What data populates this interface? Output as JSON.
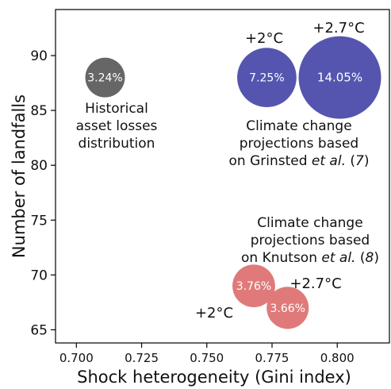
{
  "chart_data": {
    "type": "scatter",
    "xlabel": "Shock heterogeneity (Gini index)",
    "ylabel": "Number of landfalls",
    "xlim": [
      0.692,
      0.82
    ],
    "ylim": [
      63.8,
      94.2
    ],
    "xticks": [
      0.7,
      0.725,
      0.75,
      0.775,
      0.8
    ],
    "xtick_labels": [
      "0.700",
      "0.725",
      "0.750",
      "0.775",
      "0.800"
    ],
    "yticks": [
      65,
      70,
      75,
      80,
      85,
      90
    ],
    "ytick_labels": [
      "65",
      "70",
      "75",
      "80",
      "85",
      "90"
    ],
    "grid": false,
    "points": [
      {
        "x": 0.711,
        "y": 88,
        "value": 3.24,
        "label": "3.24%",
        "color": "#666666"
      },
      {
        "x": 0.773,
        "y": 88,
        "value": 7.25,
        "label": "7.25%",
        "color": "#5555b0"
      },
      {
        "x": 0.801,
        "y": 88,
        "value": 14.05,
        "label": "14.05%",
        "color": "#5555b0"
      },
      {
        "x": 0.768,
        "y": 69,
        "value": 3.76,
        "label": "3.76%",
        "color": "#e07a7a"
      },
      {
        "x": 0.781,
        "y": 67,
        "value": 3.66,
        "label": "3.66%",
        "color": "#e07a7a"
      }
    ],
    "annotations": {
      "historical": [
        "Historical",
        "asset losses",
        "distribution"
      ],
      "grinsted_scenario_low": "+2°C",
      "grinsted_scenario_high": "+2.7°C",
      "grinsted": {
        "line1": "Climate change",
        "line2": "projections based",
        "line3_prefix": "on Grinsted ",
        "line3_italic": "et al.",
        "line3_ref_open": " (",
        "line3_ref": "7",
        "line3_ref_close": ")"
      },
      "knutson_scenario_low": "+2°C",
      "knutson_scenario_high": "+2.7°C",
      "knutson": {
        "line1": "Climate change",
        "line2": "projections based",
        "line3_prefix": "on Knutson ",
        "line3_italic": "et al.",
        "line3_ref_open": " (",
        "line3_ref": "8",
        "line3_ref_close": ")"
      }
    }
  }
}
